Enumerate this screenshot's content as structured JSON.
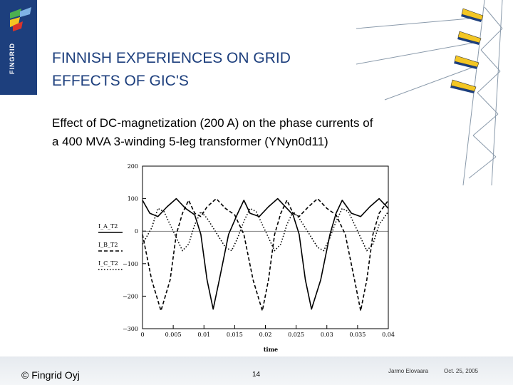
{
  "brand": {
    "logo_text": "FINGRID",
    "color": "#1d3f7d"
  },
  "title": {
    "line1": "FINNISH EXPERIENCES ON GRID",
    "line2": "EFFECTS OF GIC'S"
  },
  "subtitle": {
    "line1": "Effect of DC-magnetization (200 A) on the phase currents of",
    "line2": "a 400 MVA 3-winding 5-leg transformer (YNyn0d11)"
  },
  "footer": {
    "copyright": "© Fingrid Oyj",
    "page": "14",
    "author": "Jarmo Elovaara",
    "date": "Oct. 25, 2005"
  },
  "chart_data": {
    "type": "line",
    "xlabel": "time",
    "ylabel": "",
    "xlim": [
      0,
      0.04
    ],
    "ylim": [
      -300,
      200
    ],
    "x_ticks": [
      "0",
      "0.005",
      "0.01",
      "0.015",
      "0.02",
      "0.025",
      "0.03",
      "0.035",
      "0.04"
    ],
    "y_ticks": [
      "200",
      "100",
      "0",
      "−100",
      "−200",
      "−300"
    ],
    "grid": false,
    "legend_position": "left",
    "series": [
      {
        "name": "I_A_T2",
        "style": "solid",
        "color": "#000000",
        "x": [
          0,
          0.0012,
          0.0025,
          0.004,
          0.0055,
          0.007,
          0.0085,
          0.0095,
          0.0105,
          0.0115,
          0.0125,
          0.014,
          0.0155,
          0.0165,
          0.0175,
          0.019,
          0.0205,
          0.022,
          0.0235,
          0.0245,
          0.0255,
          0.0265,
          0.0275,
          0.029,
          0.0305,
          0.0315,
          0.0325,
          0.034,
          0.0355,
          0.037,
          0.0385,
          0.04
        ],
        "y": [
          95,
          55,
          45,
          75,
          100,
          70,
          50,
          -10,
          -150,
          -240,
          -150,
          -10,
          55,
          95,
          55,
          45,
          75,
          100,
          70,
          50,
          -10,
          -150,
          -240,
          -150,
          -10,
          55,
          95,
          55,
          45,
          75,
          100,
          70
        ]
      },
      {
        "name": "I_B_T2",
        "style": "dashed",
        "color": "#000000",
        "x": [
          0,
          0.0015,
          0.003,
          0.0045,
          0.0055,
          0.0065,
          0.0075,
          0.0085,
          0.0095,
          0.0105,
          0.012,
          0.0135,
          0.015,
          0.0165,
          0.018,
          0.0195,
          0.0205,
          0.0215,
          0.0225,
          0.0235,
          0.0245,
          0.0255,
          0.027,
          0.0285,
          0.03,
          0.0315,
          0.033,
          0.0345,
          0.0355,
          0.0365,
          0.0375,
          0.0385,
          0.04
        ],
        "y": [
          -10,
          -150,
          -245,
          -150,
          -10,
          55,
          95,
          55,
          45,
          75,
          100,
          70,
          50,
          -10,
          -150,
          -245,
          -150,
          -10,
          55,
          95,
          55,
          45,
          75,
          100,
          70,
          50,
          -10,
          -150,
          -245,
          -150,
          -10,
          55,
          95
        ]
      },
      {
        "name": "I_C_T2",
        "style": "dotted",
        "color": "#000000",
        "x": [
          0,
          0.0015,
          0.0025,
          0.0035,
          0.0045,
          0.0055,
          0.0065,
          0.0075,
          0.0085,
          0.0095,
          0.0105,
          0.0115,
          0.0125,
          0.0135,
          0.0145,
          0.0155,
          0.0165,
          0.0175,
          0.0185,
          0.0195,
          0.0205,
          0.0215,
          0.0225,
          0.0235,
          0.0245,
          0.0255,
          0.0265,
          0.0275,
          0.0285,
          0.0295,
          0.0305,
          0.0315,
          0.0325,
          0.0335,
          0.0345,
          0.0355,
          0.0365,
          0.0375,
          0.0385,
          0.04
        ],
        "y": [
          -40,
          10,
          70,
          60,
          20,
          -20,
          -60,
          -40,
          20,
          60,
          40,
          10,
          -20,
          -50,
          -60,
          -20,
          30,
          70,
          60,
          20,
          -20,
          -60,
          -40,
          20,
          60,
          40,
          10,
          -20,
          -50,
          -60,
          -20,
          30,
          70,
          60,
          20,
          -20,
          -60,
          -40,
          20,
          60
        ]
      }
    ]
  }
}
